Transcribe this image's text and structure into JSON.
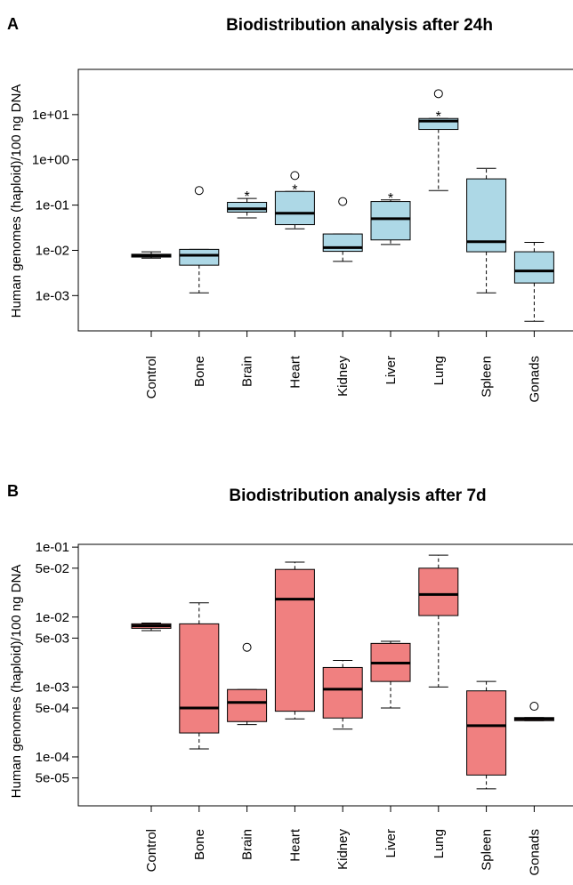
{
  "panels": [
    {
      "letter": "A",
      "ylabel": "Human genomes (haploid)/100 ng DNA",
      "colors": {
        "box_fill": "#add8e6"
      }
    },
    {
      "letter": "B",
      "ylabel": "Human genomes (haploid)/100 ng DNA",
      "colors": {
        "box_fill": "#f08080"
      }
    }
  ],
  "chart_data": [
    {
      "type": "box",
      "title": "Biodistribution analysis after 24h",
      "ylabel": "Human genomes (haploid)/100 ng DNA",
      "y_scale": "log",
      "ylim": [
        0.00015,
        100
      ],
      "yticks": [
        {
          "value": 0.001,
          "label": "1e-03"
        },
        {
          "value": 0.01,
          "label": "1e-02"
        },
        {
          "value": 0.1,
          "label": "1e-01"
        },
        {
          "value": 1,
          "label": "1e+00"
        },
        {
          "value": 10,
          "label": "1e+01"
        }
      ],
      "categories": [
        "Control",
        "Bone",
        "Brain",
        "Heart",
        "Kidney",
        "Liver",
        "Lung",
        "Spleen",
        "Gonads"
      ],
      "boxes": [
        {
          "category": "Control",
          "whisker_low": 0.0067,
          "q1": 0.0071,
          "median": 0.0077,
          "q3": 0.0082,
          "whisker_high": 0.0093,
          "outliers": [],
          "significant": false
        },
        {
          "category": "Bone",
          "whisker_low": 0.00115,
          "q1": 0.0047,
          "median": 0.0078,
          "q3": 0.0105,
          "whisker_high": 0.0105,
          "outliers": [
            0.21
          ],
          "significant": false
        },
        {
          "category": "Brain",
          "whisker_low": 0.052,
          "q1": 0.07,
          "median": 0.083,
          "q3": 0.115,
          "whisker_high": 0.14,
          "outliers": [],
          "significant": true
        },
        {
          "category": "Heart",
          "whisker_low": 0.03,
          "q1": 0.037,
          "median": 0.066,
          "q3": 0.2,
          "whisker_high": 0.2,
          "outliers": [
            0.45
          ],
          "significant": true
        },
        {
          "category": "Kidney",
          "whisker_low": 0.0057,
          "q1": 0.0095,
          "median": 0.0115,
          "q3": 0.023,
          "whisker_high": 0.023,
          "outliers": [
            0.12
          ],
          "significant": false
        },
        {
          "category": "Liver",
          "whisker_low": 0.0135,
          "q1": 0.017,
          "median": 0.05,
          "q3": 0.12,
          "whisker_high": 0.13,
          "outliers": [],
          "significant": true
        },
        {
          "category": "Lung",
          "whisker_low": 0.21,
          "q1": 4.7,
          "median": 7.2,
          "q3": 8.2,
          "whisker_high": 8.2,
          "outliers": [
            29
          ],
          "significant": true
        },
        {
          "category": "Spleen",
          "whisker_low": 0.00115,
          "q1": 0.0093,
          "median": 0.0155,
          "q3": 0.38,
          "whisker_high": 0.65,
          "outliers": [],
          "significant": false
        },
        {
          "category": "Gonads",
          "whisker_low": 0.00027,
          "q1": 0.0019,
          "median": 0.0035,
          "q3": 0.0093,
          "whisker_high": 0.015,
          "outliers": [],
          "significant": false
        }
      ],
      "significance_marker": "*"
    },
    {
      "type": "box",
      "title": "Biodistribution analysis after 7d",
      "ylabel": "Human genomes (haploid)/100 ng DNA",
      "y_scale": "log",
      "ylim": [
        2e-05,
        0.11
      ],
      "yticks": [
        {
          "value": 0.1,
          "label": "1e-01"
        },
        {
          "value": 0.05,
          "label": "5e-02"
        },
        {
          "value": 0.01,
          "label": "1e-02"
        },
        {
          "value": 0.005,
          "label": "5e-03"
        },
        {
          "value": 0.001,
          "label": "1e-03"
        },
        {
          "value": 0.0005,
          "label": "5e-04"
        },
        {
          "value": 0.0001,
          "label": "1e-04"
        },
        {
          "value": 5e-05,
          "label": "5e-05"
        }
      ],
      "categories": [
        "Control",
        "Bone",
        "Brain",
        "Heart",
        "Kidney",
        "Liver",
        "Lung",
        "Spleen",
        "Gonads"
      ],
      "boxes": [
        {
          "category": "Control",
          "whisker_low": 0.0064,
          "q1": 0.0069,
          "median": 0.0075,
          "q3": 0.008,
          "whisker_high": 0.0082,
          "outliers": [],
          "significant": false
        },
        {
          "category": "Bone",
          "whisker_low": 0.00013,
          "q1": 0.00022,
          "median": 0.0005,
          "q3": 0.008,
          "whisker_high": 0.016,
          "outliers": [],
          "significant": false
        },
        {
          "category": "Brain",
          "whisker_low": 0.00029,
          "q1": 0.00032,
          "median": 0.0006,
          "q3": 0.00092,
          "whisker_high": 0.00092,
          "outliers": [
            0.0037
          ],
          "significant": false
        },
        {
          "category": "Heart",
          "whisker_low": 0.00035,
          "q1": 0.00045,
          "median": 0.018,
          "q3": 0.048,
          "whisker_high": 0.061,
          "outliers": [],
          "significant": false
        },
        {
          "category": "Kidney",
          "whisker_low": 0.00025,
          "q1": 0.00036,
          "median": 0.00093,
          "q3": 0.0019,
          "whisker_high": 0.0024,
          "outliers": [],
          "significant": false
        },
        {
          "category": "Liver",
          "whisker_low": 0.0005,
          "q1": 0.0012,
          "median": 0.0022,
          "q3": 0.0042,
          "whisker_high": 0.0045,
          "outliers": [],
          "significant": false
        },
        {
          "category": "Lung",
          "whisker_low": 0.001,
          "q1": 0.0105,
          "median": 0.021,
          "q3": 0.05,
          "whisker_high": 0.077,
          "outliers": [],
          "significant": false
        },
        {
          "category": "Spleen",
          "whisker_low": 3.5e-05,
          "q1": 5.5e-05,
          "median": 0.00028,
          "q3": 0.00088,
          "whisker_high": 0.0012,
          "outliers": [],
          "significant": false
        },
        {
          "category": "Gonads",
          "whisker_low": 0.00033,
          "q1": 0.00033,
          "median": 0.00035,
          "q3": 0.000365,
          "whisker_high": 0.000365,
          "outliers": [
            0.00053
          ],
          "significant": false
        }
      ]
    }
  ]
}
